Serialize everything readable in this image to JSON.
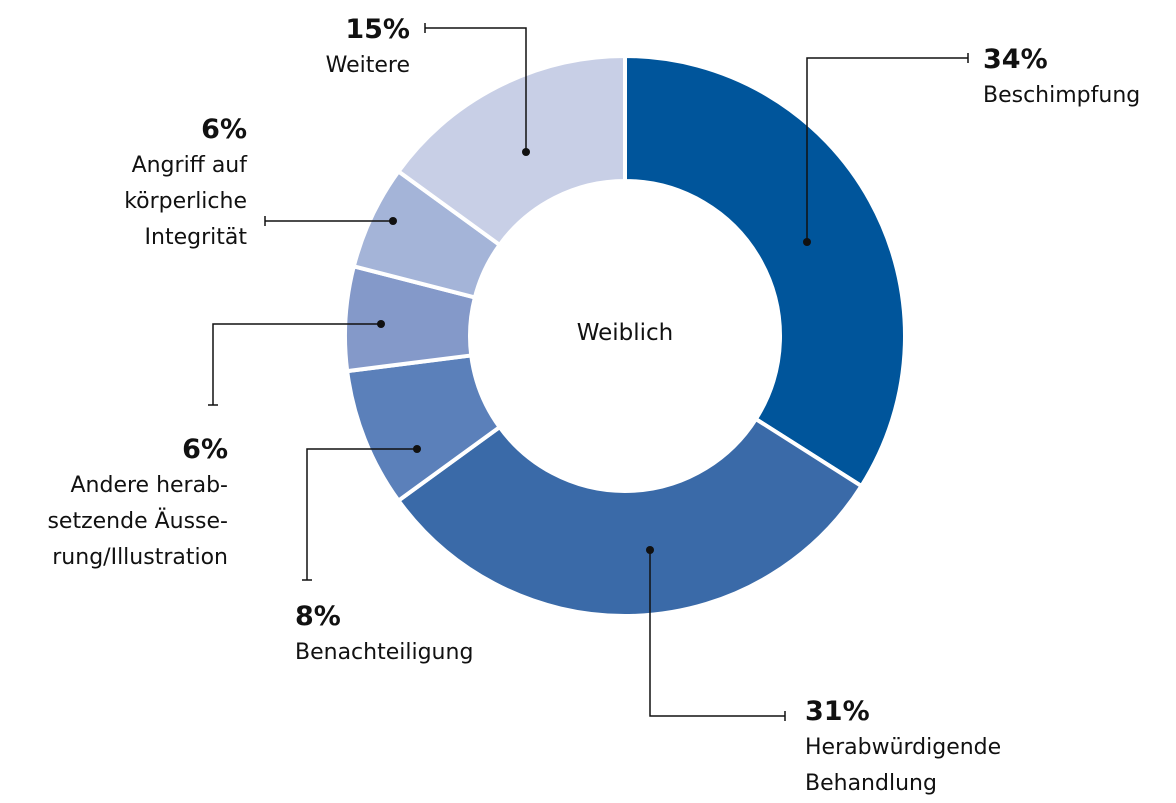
{
  "chart_data": {
    "type": "donut",
    "center_label": "Weiblich",
    "categories": [
      "Beschimpfung",
      "Herabwürdigende\nBehandlung",
      "Benachteiligung",
      "Andere herab-\nsetzende Äusse-\nrung/Illustration",
      "Angriff auf\nkörperliche\nIntegrität",
      "Weitere"
    ],
    "values": [
      34,
      31,
      8,
      6,
      6,
      15
    ],
    "value_labels": [
      "34%",
      "31%",
      "8%",
      "6%",
      "6%",
      "15%"
    ],
    "colors": [
      "#00559b",
      "#3a6aa8",
      "#5b80ba",
      "#8499c9",
      "#a4b4d8",
      "#c8cfe6"
    ]
  }
}
